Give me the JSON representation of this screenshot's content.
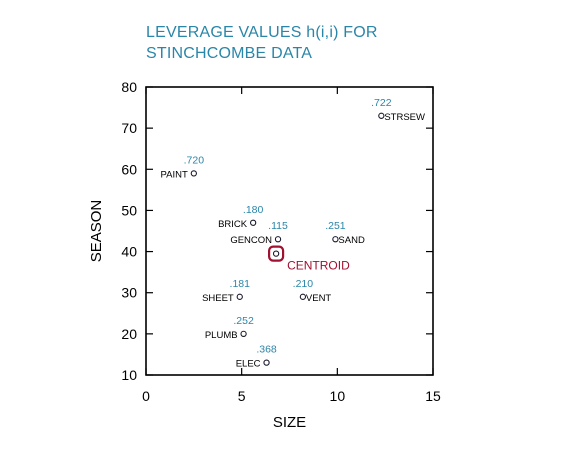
{
  "chart_data": {
    "type": "scatter",
    "title": [
      "LEVERAGE VALUES h(i,i) FOR",
      "STINCHCOMBE DATA"
    ],
    "xlabel": "SIZE",
    "ylabel": "SEASON",
    "xlim": [
      0,
      15
    ],
    "ylim": [
      10,
      80
    ],
    "x_ticks": [
      0,
      5,
      10,
      15
    ],
    "y_ticks": [
      10,
      20,
      30,
      40,
      50,
      60,
      70,
      80
    ],
    "grid": false,
    "points": [
      {
        "label": "STRSEW",
        "x": 12.3,
        "y": 73,
        "leverage": ".722",
        "side": "right"
      },
      {
        "label": "PAINT",
        "x": 2.5,
        "y": 59,
        "leverage": ".720",
        "side": "left"
      },
      {
        "label": "BRICK",
        "x": 5.6,
        "y": 47,
        "leverage": ".180",
        "side": "left"
      },
      {
        "label": "GENCON",
        "x": 6.9,
        "y": 43,
        "leverage": ".115",
        "side": "left"
      },
      {
        "label": "SAND",
        "x": 9.9,
        "y": 43,
        "leverage": ".251",
        "side": "right"
      },
      {
        "label": "SHEET",
        "x": 4.9,
        "y": 29,
        "leverage": ".181",
        "side": "left"
      },
      {
        "label": "VENT",
        "x": 8.2,
        "y": 29,
        "leverage": ".210",
        "side": "right"
      },
      {
        "label": "PLUMB",
        "x": 5.1,
        "y": 20,
        "leverage": ".252",
        "side": "left"
      },
      {
        "label": "ELEC",
        "x": 6.3,
        "y": 13,
        "leverage": ".368",
        "side": "left"
      }
    ],
    "centroid": {
      "label": "CENTROID",
      "x": 6.8,
      "y": 39.5
    },
    "colors": {
      "axis": "#000000",
      "title": "#2a86a8",
      "leverage": "#2a86a8",
      "centroid": "#a01030",
      "label": "#000000"
    }
  }
}
